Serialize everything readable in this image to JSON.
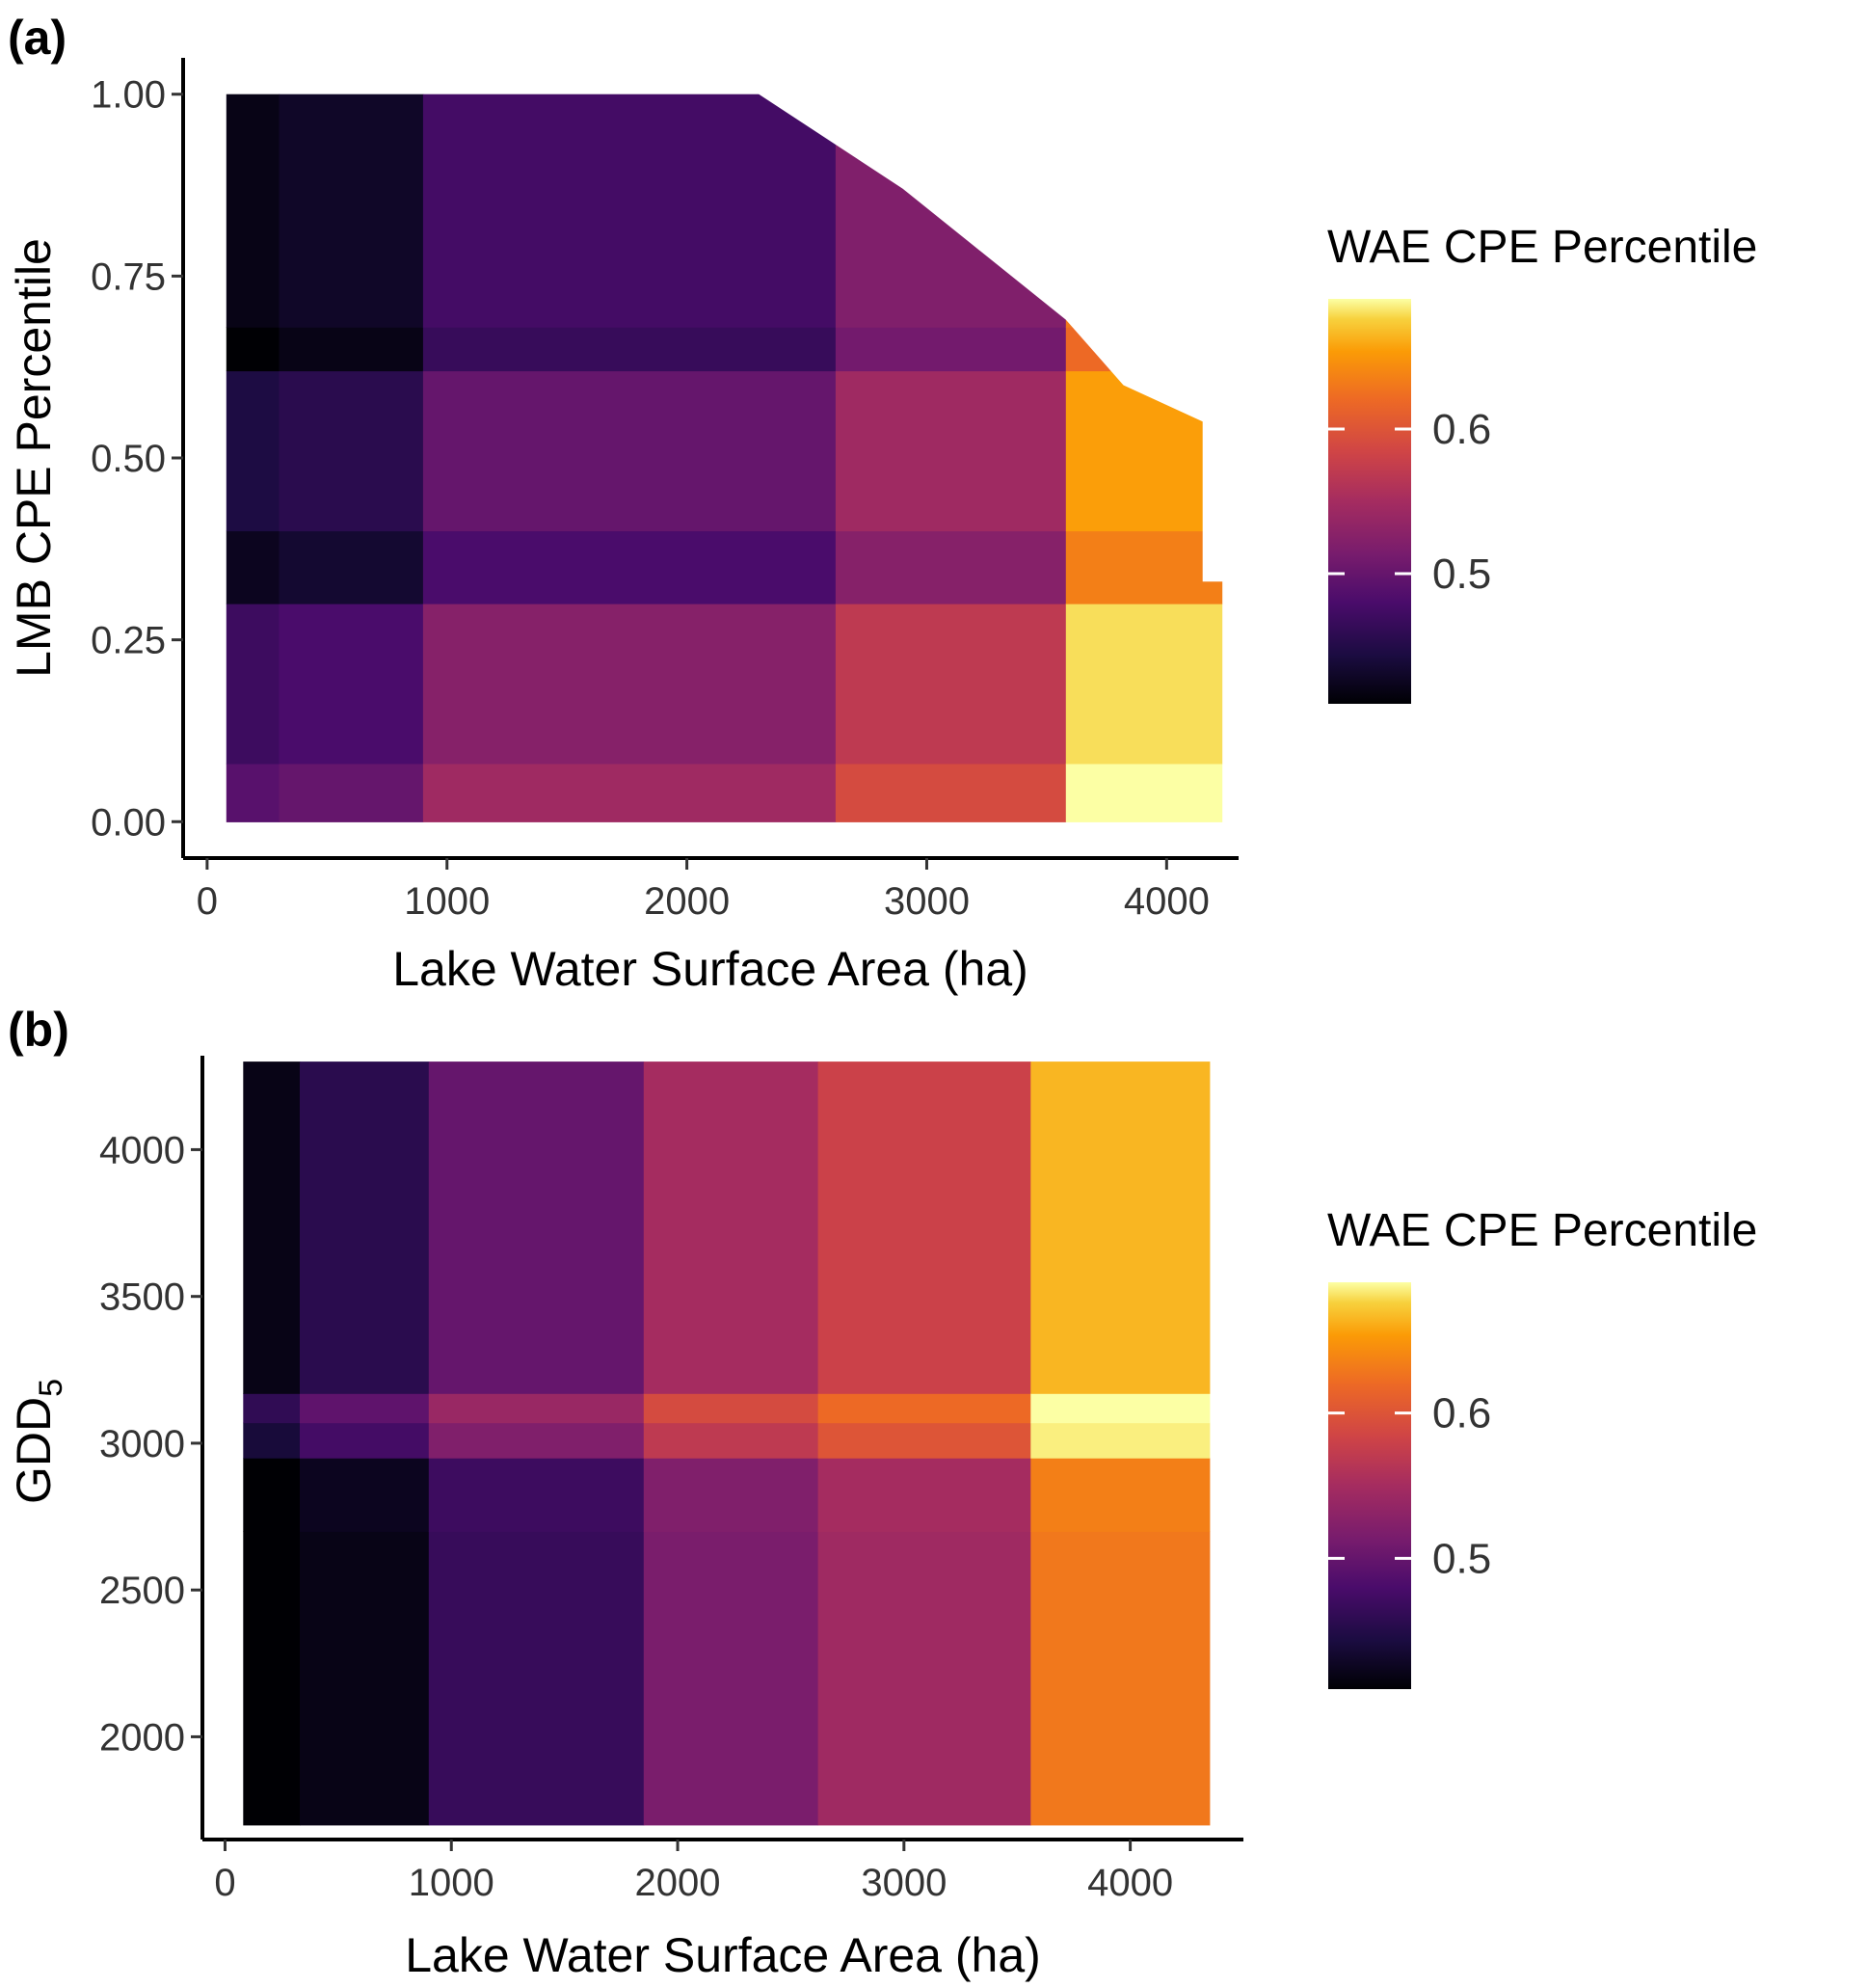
{
  "panels": [
    {
      "label": "(a)"
    },
    {
      "label": "(b)"
    }
  ],
  "chart_data": [
    {
      "type": "heatmap",
      "panel": "(a)",
      "xlabel": "Lake Water Surface Area (ha)",
      "ylabel": "LMB CPE Percentile",
      "xlim": [
        -100,
        4300
      ],
      "ylim": [
        -0.05,
        1.05
      ],
      "xticks": [
        0,
        1000,
        2000,
        3000,
        4000
      ],
      "xtick_labels": [
        "0",
        "1000",
        "2000",
        "3000",
        "4000"
      ],
      "yticks": [
        0,
        0.25,
        0.5,
        0.75,
        1
      ],
      "ytick_labels": [
        "0.00",
        "0.25",
        "0.50",
        "0.75",
        "1.00"
      ],
      "grid": false,
      "legend": {
        "title": "WAE CPE Percentile",
        "position": "right",
        "range": [
          0.41,
          0.69
        ],
        "ticks": [
          0.5,
          0.6
        ],
        "tick_labels": [
          "0.5",
          "0.6"
        ],
        "palette": "inferno"
      },
      "x_bins": [
        {
          "x0": 80,
          "x1": 300,
          "base": 0.43
        },
        {
          "x0": 300,
          "x1": 900,
          "base": 0.44
        },
        {
          "x0": 900,
          "x1": 2620,
          "base": 0.485
        },
        {
          "x0": 2620,
          "x1": 3580,
          "base": 0.53
        },
        {
          "x0": 3580,
          "x1": 4230,
          "base": 0.64
        }
      ],
      "y_bins": [
        {
          "y0": 0.0,
          "y1": 0.08,
          "adj": 0.06
        },
        {
          "y0": 0.08,
          "y1": 0.3,
          "adj": 0.04
        },
        {
          "y0": 0.3,
          "y1": 0.4,
          "adj": -0.005
        },
        {
          "y0": 0.4,
          "y1": 0.62,
          "adj": 0.015
        },
        {
          "y0": 0.62,
          "y1": 0.68,
          "adj": -0.02
        },
        {
          "y0": 0.68,
          "y1": 1.0,
          "adj": -0.01
        }
      ],
      "top_edge": [
        [
          2300,
          1.0
        ],
        [
          2900,
          0.87
        ],
        [
          3580,
          0.69
        ],
        [
          3820,
          0.6
        ],
        [
          4150,
          0.55
        ],
        [
          4150,
          0.33
        ],
        [
          4230,
          0.33
        ]
      ]
    },
    {
      "type": "heatmap",
      "panel": "(b)",
      "xlabel": "Lake Water Surface Area (ha)",
      "ylabel": "GDD",
      "ylabel_subscript": "5",
      "xlim": [
        -100,
        4500
      ],
      "ylim": [
        1650,
        4320
      ],
      "xticks": [
        0,
        1000,
        2000,
        3000,
        4000
      ],
      "xtick_labels": [
        "0",
        "1000",
        "2000",
        "3000",
        "4000"
      ],
      "yticks": [
        2000,
        2500,
        3000,
        3500,
        4000
      ],
      "ytick_labels": [
        "2000",
        "2500",
        "3000",
        "3500",
        "4000"
      ],
      "grid": false,
      "legend": {
        "title": "WAE CPE Percentile",
        "position": "right",
        "range": [
          0.41,
          0.69
        ],
        "ticks": [
          0.5,
          0.6
        ],
        "tick_labels": [
          "0.5",
          "0.6"
        ],
        "palette": "inferno"
      },
      "x_bins": [
        {
          "x0": 80,
          "x1": 330,
          "base": 0.42
        },
        {
          "x0": 330,
          "x1": 900,
          "base": 0.455
        },
        {
          "x0": 900,
          "x1": 1850,
          "base": 0.5
        },
        {
          "x0": 1850,
          "x1": 2620,
          "base": 0.55
        },
        {
          "x0": 2620,
          "x1": 3560,
          "base": 0.58
        },
        {
          "x0": 3560,
          "x1": 4350,
          "base": 0.665
        }
      ],
      "y_bins": [
        {
          "y0": 1700,
          "y1": 2700,
          "adj": -0.035
        },
        {
          "y0": 2700,
          "y1": 2950,
          "adj": -0.03
        },
        {
          "y0": 2950,
          "y1": 3070,
          "adj": 0.02
        },
        {
          "y0": 3070,
          "y1": 3170,
          "adj": 0.04
        },
        {
          "y0": 3170,
          "y1": 4300,
          "adj": 0.0
        }
      ]
    }
  ]
}
